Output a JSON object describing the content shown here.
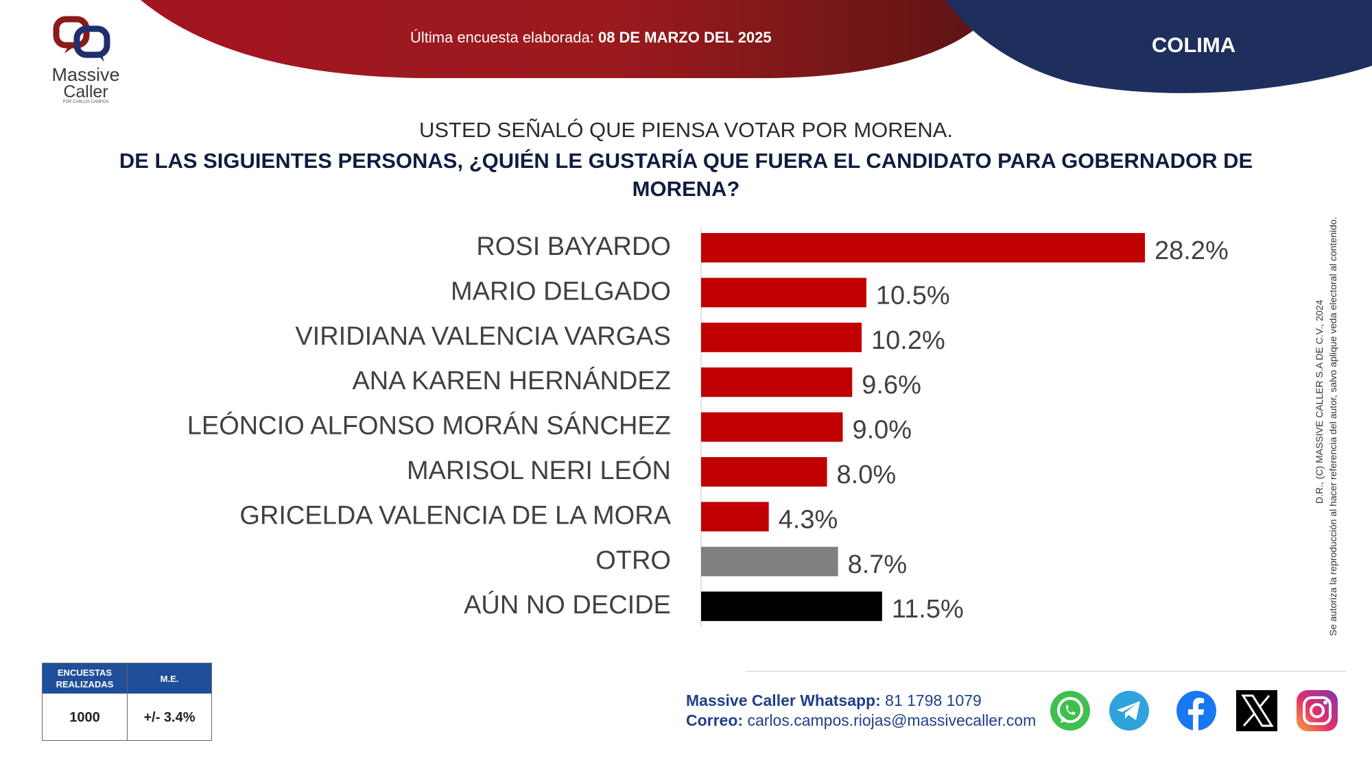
{
  "header": {
    "survey_label": "Última encuesta elaborada:",
    "survey_date": "08 DE MARZO DEL 2025",
    "region": "COLIMA",
    "colors": {
      "red": "#b5121b",
      "navy": "#1e2f5e"
    }
  },
  "logo": {
    "name": "Massive",
    "name2": "Caller",
    "tagline": "POR CARLOS CAMPOS"
  },
  "question": {
    "line1": "USTED SEÑALÓ QUE PIENSA VOTAR POR MORENA.",
    "line2": "DE LAS SIGUIENTES PERSONAS, ¿QUIÉN LE GUSTARÍA QUE FUERA EL CANDIDATO PARA GOBERNADOR DE MORENA?"
  },
  "chart_data": {
    "type": "bar",
    "orientation": "horizontal",
    "categories": [
      "ROSI BAYARDO",
      "MARIO DELGADO",
      "VIRIDIANA VALENCIA VARGAS",
      "ANA KAREN HERNÁNDEZ",
      "LEÓNCIO ALFONSO MORÁN SÁNCHEZ",
      "MARISOL NERI LEÓN",
      "GRICELDA VALENCIA DE LA MORA",
      "OTRO",
      "AÚN NO DECIDE"
    ],
    "values": [
      28.2,
      10.5,
      10.2,
      9.6,
      9.0,
      8.0,
      4.3,
      8.7,
      11.5
    ],
    "labels": [
      "28.2%",
      "10.5%",
      "10.2%",
      "9.6%",
      "9.0%",
      "8.0%",
      "4.3%",
      "8.7%",
      "11.5%"
    ],
    "colors": [
      "#c00000",
      "#c00000",
      "#c00000",
      "#c00000",
      "#c00000",
      "#c00000",
      "#c00000",
      "#808080",
      "#000000"
    ],
    "xlim": [
      0,
      30
    ],
    "grid": false,
    "legend": "none"
  },
  "stats": {
    "col1_header": "ENCUESTAS REALIZADAS",
    "col2_header": "M.E.",
    "col1_value": "1000",
    "col2_value": "+/- 3.4%"
  },
  "contact": {
    "whatsapp_label": "Massive Caller Whatsapp:",
    "whatsapp_number": "81 1798 1079",
    "email_label": "Correo:",
    "email": "carlos.campos.riojas@massivecaller.com"
  },
  "legal": {
    "line1": "D.R., (C) MASSIVE CALLER S.A DE C.V., 2024",
    "line2": "Se autoriza la reproducción al hacer referencia del autor, salvo aplique veda electoral al contenido."
  },
  "social_icons": [
    "whatsapp-icon",
    "telegram-icon",
    "facebook-icon",
    "x-icon",
    "instagram-icon"
  ]
}
